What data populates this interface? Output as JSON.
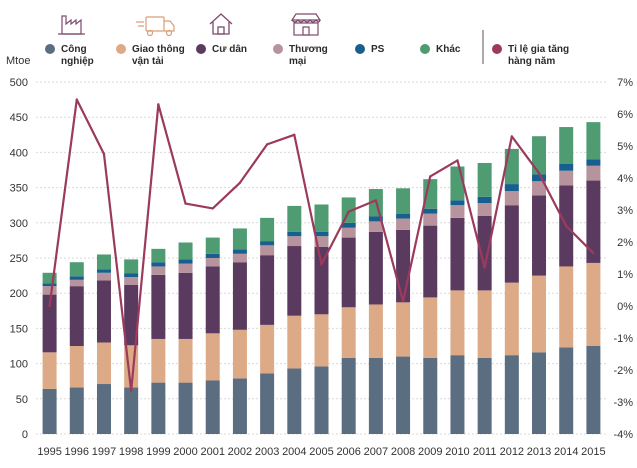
{
  "chart_data": {
    "type": "bar",
    "stacked": true,
    "ylabel": "Mtoe",
    "ylim": [
      0,
      500
    ],
    "y2lim": [
      -4,
      7
    ],
    "grid": true,
    "legend_position": "top",
    "categories": [
      "1995",
      "1996",
      "1997",
      "1998",
      "1999",
      "2000",
      "2001",
      "2002",
      "2003",
      "2004",
      "2005",
      "2006",
      "2007",
      "2008",
      "2009",
      "2010",
      "2011",
      "2012",
      "2013",
      "2014",
      "2015"
    ],
    "y_ticks": [
      "0",
      "50",
      "100",
      "150",
      "200",
      "250",
      "300",
      "350",
      "400",
      "450",
      "500"
    ],
    "y2_ticks": [
      "-4%",
      "-3%",
      "-2%",
      "-1%",
      "0%",
      "1%",
      "2%",
      "3%",
      "4%",
      "5%",
      "6%",
      "7%"
    ],
    "series": [
      {
        "name": "Công nghiệp",
        "color": "#5b6d80",
        "values": [
          64,
          66,
          71,
          66,
          73,
          73,
          76,
          79,
          86,
          93,
          96,
          108,
          108,
          110,
          108,
          112,
          108,
          112,
          116,
          123,
          125
        ]
      },
      {
        "name": "Giao thông vận tải",
        "color": "#dcaa86",
        "values": [
          52,
          59,
          59,
          60,
          62,
          62,
          67,
          69,
          69,
          75,
          74,
          72,
          76,
          77,
          86,
          92,
          96,
          103,
          109,
          115,
          118
        ]
      },
      {
        "name": "Cư dân",
        "color": "#5b3a5f",
        "values": [
          82,
          85,
          88,
          86,
          91,
          94,
          95,
          96,
          99,
          99,
          96,
          99,
          103,
          103,
          102,
          103,
          106,
          110,
          114,
          115,
          117
        ]
      },
      {
        "name": "Thương mại",
        "color": "#b7939d",
        "values": [
          12,
          9,
          11,
          11,
          12,
          13,
          12,
          12,
          14,
          14,
          15,
          14,
          15,
          16,
          17,
          18,
          18,
          20,
          20,
          21,
          21
        ]
      },
      {
        "name": "PS",
        "color": "#175f8e",
        "values": [
          4,
          5,
          5,
          5,
          6,
          6,
          6,
          6,
          6,
          6,
          6,
          7,
          7,
          7,
          7,
          7,
          9,
          10,
          10,
          10,
          9
        ]
      },
      {
        "name": "Khác",
        "color": "#4f9b72",
        "values": [
          15,
          20,
          21,
          20,
          19,
          24,
          23,
          30,
          33,
          37,
          39,
          36,
          39,
          36,
          42,
          48,
          48,
          50,
          54,
          52,
          53
        ]
      }
    ],
    "line_series": {
      "name": "Tỉ lệ gia tăng hàng năm",
      "color": "#9c3a5c",
      "axis": "right",
      "values": [
        0,
        6.45,
        4.75,
        -2.65,
        6.3,
        3.2,
        3.05,
        3.85,
        5.05,
        5.35,
        1.3,
        2.95,
        3.3,
        0.15,
        4.05,
        4.55,
        1.2,
        5.3,
        4.15,
        2.5,
        1.65
      ]
    }
  }
}
